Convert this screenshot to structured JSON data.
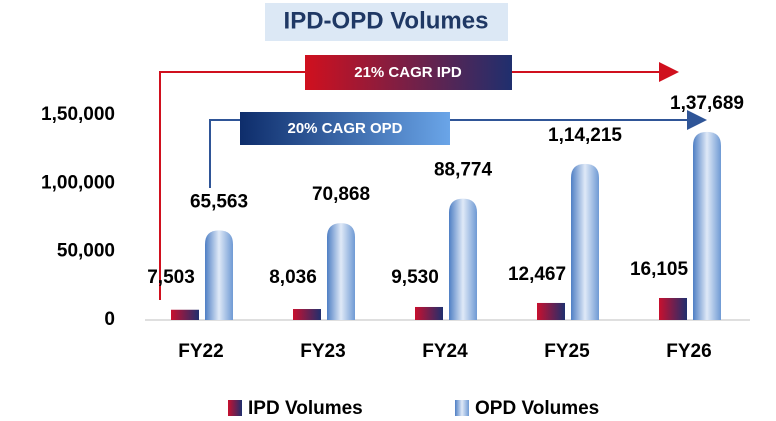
{
  "chart_data": {
    "type": "bar",
    "title": "IPD-OPD Volumes",
    "categories": [
      "FY22",
      "FY23",
      "FY24",
      "FY25",
      "FY26"
    ],
    "series": [
      {
        "name": "IPD Volumes",
        "color": "#b0112a",
        "values": [
          7503,
          8036,
          9530,
          12467,
          16105
        ],
        "value_labels": [
          "7,503",
          "8,036",
          "9,530",
          "12,467",
          "16,105"
        ]
      },
      {
        "name": "OPD Volumes",
        "color": "#7fa8dc",
        "values": [
          65563,
          70868,
          88774,
          114215,
          137689
        ],
        "value_labels": [
          "65,563",
          "70,868",
          "88,774",
          "1,14,215",
          "1,37,689"
        ]
      }
    ],
    "ylim": [
      0,
      150000
    ],
    "yticks": [
      0,
      {
        "value": 50000,
        "label": "50,000"
      },
      {
        "value": 100000,
        "label": "1,00,000"
      },
      {
        "value": 150000,
        "label": "1,50,000"
      }
    ],
    "annotations": [
      "21% CAGR IPD",
      "20% CAGR OPD"
    ],
    "legend": "bottom"
  }
}
